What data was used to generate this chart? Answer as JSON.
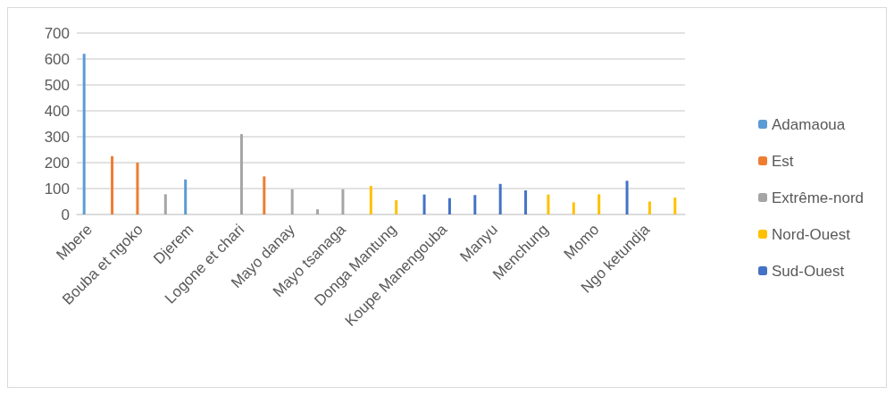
{
  "chart_data": {
    "type": "bar",
    "categories": [
      "Mbere",
      null,
      "Bouba et ngoko",
      null,
      "Djerem",
      null,
      "Logone et chari",
      null,
      "Mayo danay",
      null,
      "Mayo tsanaga",
      null,
      "Donga Mantung",
      null,
      "Koupe Manengouba",
      null,
      "Manyu",
      null,
      "Menchung",
      null,
      "Momo",
      null,
      "Ngo ketundja",
      null
    ],
    "series": [
      {
        "name": "Adamaoua",
        "color": "#5b9bd5",
        "values": [
          620,
          null,
          null,
          null,
          135,
          null,
          null,
          null,
          null,
          null,
          null,
          null,
          null,
          null,
          null,
          null,
          null,
          null,
          null,
          null,
          null,
          null,
          null,
          null
        ]
      },
      {
        "name": "Est",
        "color": "#ed7d31",
        "values": [
          null,
          225,
          200,
          null,
          null,
          null,
          null,
          147,
          null,
          null,
          null,
          null,
          null,
          null,
          null,
          null,
          null,
          null,
          null,
          null,
          null,
          null,
          null,
          null
        ]
      },
      {
        "name": "Extrême-nord",
        "color": "#a5a5a5",
        "values": [
          null,
          null,
          null,
          78,
          null,
          null,
          310,
          null,
          97,
          20,
          97,
          null,
          null,
          null,
          null,
          null,
          null,
          null,
          null,
          null,
          null,
          null,
          null,
          null
        ]
      },
      {
        "name": "Nord-Ouest",
        "color": "#ffc000",
        "values": [
          null,
          null,
          null,
          null,
          null,
          null,
          null,
          null,
          null,
          null,
          null,
          110,
          55,
          null,
          null,
          null,
          null,
          null,
          77,
          47,
          78,
          null,
          50,
          65
        ]
      },
      {
        "name": "Sud-Ouest",
        "color": "#4472c4",
        "values": [
          null,
          null,
          null,
          null,
          null,
          null,
          null,
          null,
          null,
          null,
          null,
          null,
          null,
          77,
          63,
          75,
          118,
          93,
          null,
          null,
          null,
          130,
          null,
          null
        ]
      }
    ],
    "ylim": [
      0,
      700
    ],
    "yticks": [
      0,
      100,
      200,
      300,
      400,
      500,
      600,
      700
    ],
    "grid": "y",
    "legend": "right"
  }
}
